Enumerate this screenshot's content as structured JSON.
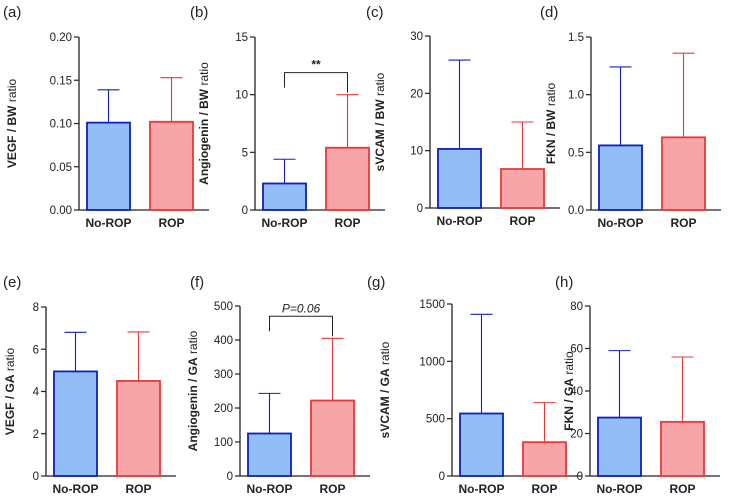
{
  "colors": {
    "no_rop_fill": "#92BDF7",
    "no_rop_edge": "#1020B8",
    "rop_fill": "#F8A5A8",
    "rop_edge": "#E43A3A",
    "axis": "#222222"
  },
  "chart_data": [
    {
      "type": "bar",
      "panel": "(a)",
      "categories": [
        "No-ROP",
        "ROP"
      ],
      "values": [
        0.101,
        0.102
      ],
      "errors_upper": [
        0.139,
        0.153
      ],
      "ylabel_main": "VEGF / BW",
      "ylabel_suffix": " ratio",
      "ylim": [
        0,
        0.2
      ],
      "yticks": [
        0,
        0.05,
        0.1,
        0.15,
        0.2
      ],
      "ytick_labels": [
        "0.00",
        "0.05",
        "0.10",
        "0.15",
        "0.20"
      ],
      "annotation": null
    },
    {
      "type": "bar",
      "panel": "(b)",
      "categories": [
        "No-ROP",
        "ROP"
      ],
      "values": [
        2.3,
        5.4
      ],
      "errors_upper": [
        4.4,
        10.0
      ],
      "ylabel_main": "Angiogenin / BW",
      "ylabel_suffix": " ratio",
      "ylim": [
        0,
        15
      ],
      "yticks": [
        0,
        5,
        10,
        15
      ],
      "ytick_labels": [
        "0",
        "5",
        "10",
        "15"
      ],
      "annotation": {
        "text": "**",
        "italic": false
      }
    },
    {
      "type": "bar",
      "panel": "(c)",
      "categories": [
        "No-ROP",
        "ROP"
      ],
      "values": [
        10.3,
        6.8
      ],
      "errors_upper": [
        25.8,
        15.0
      ],
      "ylabel_main": "sVCAM / BW",
      "ylabel_suffix": " ratio",
      "ylim": [
        0,
        30
      ],
      "yticks": [
        0,
        10,
        20,
        30
      ],
      "ytick_labels": [
        "0",
        "10",
        "20",
        "30"
      ],
      "annotation": null
    },
    {
      "type": "bar",
      "panel": "(d)",
      "categories": [
        "No-ROP",
        "ROP"
      ],
      "values": [
        0.56,
        0.63
      ],
      "errors_upper": [
        1.24,
        1.36
      ],
      "ylabel_main": "FKN / BW",
      "ylabel_suffix": " ratio",
      "ylim": [
        0,
        1.5
      ],
      "yticks": [
        0,
        0.5,
        1.0,
        1.5
      ],
      "ytick_labels": [
        "0.0",
        "0.5",
        "1.0",
        "1.5"
      ],
      "annotation": null
    },
    {
      "type": "bar",
      "panel": "(e)",
      "categories": [
        "No-ROP",
        "ROP"
      ],
      "values": [
        4.95,
        4.5
      ],
      "errors_upper": [
        6.8,
        6.82
      ],
      "ylabel_main": "VEGF / GA",
      "ylabel_suffix": " ratio",
      "ylim": [
        0,
        8
      ],
      "yticks": [
        0,
        2,
        4,
        6,
        8
      ],
      "ytick_labels": [
        "0",
        "2",
        "4",
        "6",
        "8"
      ],
      "annotation": null
    },
    {
      "type": "bar",
      "panel": "(f)",
      "categories": [
        "No-ROP",
        "ROP"
      ],
      "values": [
        125,
        222
      ],
      "errors_upper": [
        243,
        405
      ],
      "ylabel_main": "Angiogenin / GA",
      "ylabel_suffix": " ratio",
      "ylim": [
        0,
        500
      ],
      "yticks": [
        0,
        100,
        200,
        300,
        400,
        500
      ],
      "ytick_labels": [
        "0",
        "100",
        "200",
        "300",
        "400",
        "500"
      ],
      "annotation": {
        "text": "P=0.06",
        "italic": true
      }
    },
    {
      "type": "bar",
      "panel": "(g)",
      "categories": [
        "No-ROP",
        "ROP"
      ],
      "values": [
        545,
        295
      ],
      "errors_upper": [
        1410,
        640
      ],
      "ylabel_main": "sVCAM / GA",
      "ylabel_suffix": " ratio",
      "ylim": [
        0,
        1500
      ],
      "yticks": [
        0,
        500,
        1000,
        1500
      ],
      "ytick_labels": [
        "0",
        "500",
        "1000",
        "1500"
      ],
      "annotation": null
    },
    {
      "type": "bar",
      "panel": "(h)",
      "categories": [
        "No-ROP",
        "ROP"
      ],
      "values": [
        27.5,
        25.5
      ],
      "errors_upper": [
        59,
        56
      ],
      "ylabel_main": "FKN / GA",
      "ylabel_suffix": " ratio",
      "ylim": [
        0,
        80
      ],
      "yticks": [
        0,
        20,
        40,
        60,
        80
      ],
      "ytick_labels": [
        "0",
        "20",
        "40",
        "60",
        "80"
      ],
      "annotation": null
    }
  ]
}
